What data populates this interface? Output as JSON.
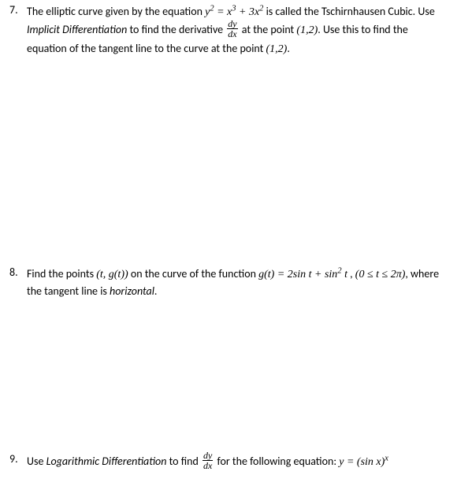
{
  "problems": {
    "p7": {
      "number": "7.",
      "text_before_eq": "The elliptic curve given by the equation ",
      "eq1": "y² = x³ + 3x²",
      "text_after_eq": " is called the Tschirnhausen Cubic. Use ",
      "italic1": "Implicit Differentiation",
      "text2": " to find the derivative ",
      "frac_top": "dy",
      "frac_bot": "dx",
      "text3": " at the point ",
      "pt1": "(1,2)",
      "text4": ". Use this to find the equation of the tangent line to the curve at the point ",
      "pt2": "(1,2)",
      "text5": "."
    },
    "p8": {
      "number": "8.",
      "text1": "Find the points ",
      "pts": "(t, g(t))",
      "text2": " on the curve of the function ",
      "eq": "g(t) = 2sin t + sin² t",
      "text3": " , ",
      "domain": "(0 ≤ t ≤ 2π)",
      "text4": ", where the tangent line is ",
      "italic1": "horizontal",
      "text5": "."
    },
    "p9": {
      "number": "9.",
      "text1": "Use ",
      "italic1": "Logarithmic Differentiation",
      "text2": " to find ",
      "frac_top": "dy",
      "frac_bot": "dx",
      "text3": " for the following equation:  ",
      "eq": "y = (sin x)ˣ"
    }
  }
}
